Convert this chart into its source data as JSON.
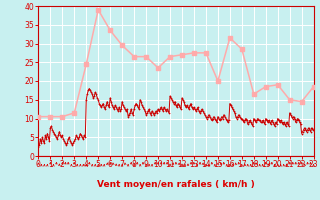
{
  "xlabel": "Vent moyen/en rafales ( km/h )",
  "bg_color": "#c8f0f0",
  "grid_color": "#ffffff",
  "avg_color": "#ffaaaa",
  "gust_color": "#cc0000",
  "font_color": "#dd0000",
  "spine_color": "#cc0000",
  "ylim": [
    0,
    40
  ],
  "yticks": [
    0,
    5,
    10,
    15,
    20,
    25,
    30,
    35,
    40
  ],
  "xlim": [
    0,
    23
  ],
  "xticks": [
    0,
    1,
    2,
    3,
    4,
    5,
    6,
    7,
    8,
    9,
    10,
    11,
    12,
    13,
    14,
    15,
    16,
    17,
    18,
    19,
    20,
    21,
    22,
    23
  ],
  "avg_x": [
    0,
    1,
    2,
    3,
    4,
    5,
    6,
    7,
    8,
    9,
    10,
    11,
    12,
    13,
    14,
    15,
    16,
    17,
    18,
    19,
    20,
    21,
    22,
    23
  ],
  "avg_y": [
    10.5,
    10.5,
    10.5,
    11.5,
    24.5,
    39.0,
    33.5,
    29.5,
    26.5,
    26.5,
    23.5,
    26.5,
    27.0,
    27.5,
    27.5,
    20.0,
    31.5,
    28.5,
    16.5,
    18.5,
    19.0,
    15.0,
    14.5,
    18.5
  ],
  "gust_x": [
    0,
    0.083,
    0.167,
    0.25,
    0.333,
    0.417,
    0.5,
    0.583,
    0.667,
    0.75,
    0.833,
    0.917,
    1.0,
    1.083,
    1.167,
    1.25,
    1.333,
    1.417,
    1.5,
    1.583,
    1.667,
    1.75,
    1.833,
    1.917,
    2.0,
    2.083,
    2.167,
    2.25,
    2.333,
    2.417,
    2.5,
    2.583,
    2.667,
    2.75,
    2.833,
    2.917,
    3.0,
    3.083,
    3.167,
    3.25,
    3.333,
    3.417,
    3.5,
    3.583,
    3.667,
    3.75,
    3.833,
    3.917,
    4.0,
    4.083,
    4.167,
    4.25,
    4.333,
    4.417,
    4.5,
    4.583,
    4.667,
    4.75,
    4.833,
    4.917,
    5.0,
    5.083,
    5.167,
    5.25,
    5.333,
    5.417,
    5.5,
    5.583,
    5.667,
    5.75,
    5.833,
    5.917,
    6.0,
    6.083,
    6.167,
    6.25,
    6.333,
    6.417,
    6.5,
    6.583,
    6.667,
    6.75,
    6.833,
    6.917,
    7.0,
    7.083,
    7.167,
    7.25,
    7.333,
    7.417,
    7.5,
    7.583,
    7.667,
    7.75,
    7.833,
    7.917,
    8.0,
    8.083,
    8.167,
    8.25,
    8.333,
    8.417,
    8.5,
    8.583,
    8.667,
    8.75,
    8.833,
    8.917,
    9.0,
    9.083,
    9.167,
    9.25,
    9.333,
    9.417,
    9.5,
    9.583,
    9.667,
    9.75,
    9.833,
    9.917,
    10.0,
    10.083,
    10.167,
    10.25,
    10.333,
    10.417,
    10.5,
    10.583,
    10.667,
    10.75,
    10.833,
    10.917,
    11.0,
    11.083,
    11.167,
    11.25,
    11.333,
    11.417,
    11.5,
    11.583,
    11.667,
    11.75,
    11.833,
    11.917,
    12.0,
    12.083,
    12.167,
    12.25,
    12.333,
    12.417,
    12.5,
    12.583,
    12.667,
    12.75,
    12.833,
    12.917,
    13.0,
    13.083,
    13.167,
    13.25,
    13.333,
    13.417,
    13.5,
    13.583,
    13.667,
    13.75,
    13.833,
    13.917,
    14.0,
    14.083,
    14.167,
    14.25,
    14.333,
    14.417,
    14.5,
    14.583,
    14.667,
    14.75,
    14.833,
    14.917,
    15.0,
    15.083,
    15.167,
    15.25,
    15.333,
    15.417,
    15.5,
    15.583,
    15.667,
    15.75,
    15.833,
    15.917,
    16.0,
    16.083,
    16.167,
    16.25,
    16.333,
    16.417,
    16.5,
    16.583,
    16.667,
    16.75,
    16.833,
    16.917,
    17.0,
    17.083,
    17.167,
    17.25,
    17.333,
    17.417,
    17.5,
    17.583,
    17.667,
    17.75,
    17.833,
    17.917,
    18.0,
    18.083,
    18.167,
    18.25,
    18.333,
    18.417,
    18.5,
    18.583,
    18.667,
    18.75,
    18.833,
    18.917,
    19.0,
    19.083,
    19.167,
    19.25,
    19.333,
    19.417,
    19.5,
    19.583,
    19.667,
    19.75,
    19.833,
    19.917,
    20.0,
    20.083,
    20.167,
    20.25,
    20.333,
    20.417,
    20.5,
    20.583,
    20.667,
    20.75,
    20.833,
    20.917,
    21.0,
    21.083,
    21.167,
    21.25,
    21.333,
    21.417,
    21.5,
    21.583,
    21.667,
    21.75,
    21.833,
    21.917,
    22.0,
    22.083,
    22.167,
    22.25,
    22.333,
    22.417,
    22.5,
    22.583,
    22.667,
    22.75,
    22.833,
    22.917,
    23.0
  ],
  "gust_y": [
    2.5,
    3.0,
    4.5,
    3.5,
    5.0,
    4.0,
    3.5,
    5.5,
    4.5,
    6.0,
    5.0,
    4.0,
    7.5,
    8.0,
    7.0,
    6.5,
    6.0,
    5.5,
    5.0,
    4.5,
    5.5,
    6.5,
    5.5,
    5.0,
    5.5,
    4.5,
    4.0,
    3.5,
    3.0,
    3.5,
    4.5,
    5.0,
    4.0,
    3.5,
    3.0,
    3.5,
    4.0,
    4.5,
    5.5,
    5.0,
    4.5,
    5.0,
    6.0,
    5.5,
    5.0,
    4.5,
    5.5,
    5.0,
    15.0,
    16.5,
    17.5,
    18.0,
    17.5,
    17.0,
    16.5,
    15.5,
    16.0,
    17.0,
    16.5,
    15.5,
    15.0,
    14.0,
    13.5,
    13.0,
    13.5,
    14.0,
    13.0,
    12.5,
    13.5,
    14.5,
    13.5,
    13.0,
    15.5,
    14.5,
    13.5,
    13.0,
    12.5,
    13.5,
    13.0,
    12.5,
    12.0,
    13.0,
    12.0,
    12.5,
    14.5,
    13.5,
    13.0,
    12.5,
    12.0,
    12.5,
    10.5,
    11.0,
    11.5,
    12.5,
    11.5,
    11.0,
    12.5,
    13.5,
    14.0,
    13.5,
    13.0,
    12.5,
    15.0,
    14.5,
    13.5,
    13.0,
    12.5,
    12.0,
    11.0,
    11.5,
    12.0,
    12.5,
    11.5,
    11.0,
    12.0,
    11.5,
    11.0,
    11.5,
    12.0,
    11.5,
    12.5,
    12.0,
    12.5,
    13.0,
    12.5,
    12.0,
    13.0,
    12.5,
    12.0,
    12.5,
    12.0,
    11.5,
    16.0,
    15.5,
    15.0,
    14.5,
    14.0,
    14.5,
    13.5,
    13.0,
    14.0,
    13.5,
    13.0,
    12.5,
    15.5,
    15.0,
    14.5,
    13.5,
    13.0,
    13.5,
    13.0,
    12.5,
    13.5,
    14.0,
    13.0,
    12.5,
    13.0,
    12.5,
    12.0,
    12.5,
    13.0,
    12.0,
    11.5,
    12.0,
    12.5,
    12.0,
    11.5,
    11.0,
    10.5,
    10.0,
    10.5,
    11.0,
    10.5,
    10.0,
    9.5,
    10.0,
    10.5,
    10.0,
    9.5,
    9.0,
    10.5,
    10.0,
    9.5,
    10.0,
    10.5,
    10.0,
    11.0,
    10.5,
    10.0,
    9.5,
    9.0,
    9.5,
    14.0,
    13.5,
    13.0,
    12.5,
    12.0,
    11.5,
    10.5,
    10.0,
    10.5,
    11.0,
    10.5,
    10.0,
    10.0,
    9.5,
    9.0,
    9.5,
    10.0,
    9.5,
    8.5,
    9.0,
    9.5,
    9.0,
    8.5,
    8.0,
    10.0,
    9.5,
    9.0,
    9.5,
    10.0,
    9.5,
    9.5,
    9.0,
    9.0,
    9.5,
    9.0,
    8.5,
    10.0,
    9.5,
    9.0,
    9.5,
    9.0,
    8.5,
    9.5,
    9.0,
    8.5,
    8.0,
    9.0,
    8.5,
    10.0,
    9.5,
    9.0,
    9.5,
    9.0,
    8.5,
    9.0,
    8.5,
    8.0,
    9.0,
    8.5,
    8.0,
    11.5,
    11.0,
    10.5,
    10.0,
    10.5,
    10.0,
    9.0,
    9.5,
    10.0,
    9.5,
    9.0,
    8.5,
    6.0,
    6.5,
    7.0,
    7.5,
    7.0,
    6.5,
    7.0,
    7.5,
    7.0,
    6.5,
    7.5,
    7.0,
    7.0
  ]
}
